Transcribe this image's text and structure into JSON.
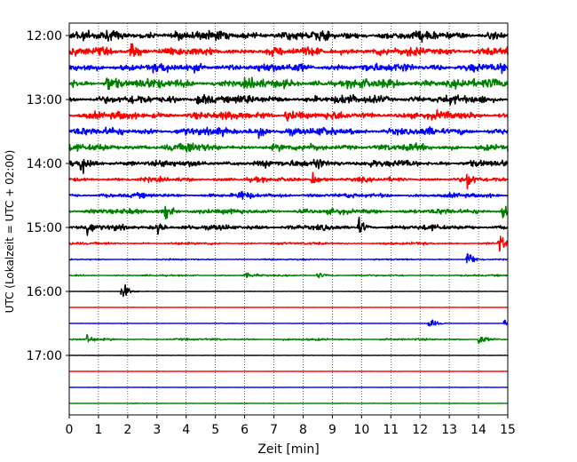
{
  "chart_data": {
    "type": "line",
    "title": "",
    "xlabel": "Zeit  [min]",
    "ylabel": "UTC (Lokalzeit = UTC + 02:00)",
    "xlim": [
      0,
      15
    ],
    "x_ticks": [
      "0",
      "1",
      "2",
      "3",
      "4",
      "5",
      "6",
      "7",
      "8",
      "9",
      "10",
      "11",
      "12",
      "13",
      "14",
      "15"
    ],
    "y_ticks": [
      "12:00",
      "13:00",
      "14:00",
      "15:00",
      "16:00",
      "17:00"
    ],
    "y_tick_traces": [
      0,
      4,
      8,
      12,
      16,
      20
    ],
    "grid": "vertical dotted",
    "trace_interval_minutes": 15,
    "trace_colors": [
      "#000000",
      "#ff0000",
      "#0000ff",
      "#008000"
    ],
    "traces": [
      {
        "start": "12:00",
        "amplitude": 0.55,
        "events": []
      },
      {
        "start": "12:15",
        "amplitude": 0.5,
        "events": [
          {
            "t": 2.1,
            "a": 1.0
          }
        ]
      },
      {
        "start": "12:30",
        "amplitude": 0.5,
        "events": []
      },
      {
        "start": "12:45",
        "amplitude": 0.55,
        "events": [
          {
            "t": 1.3,
            "a": 1.0
          }
        ]
      },
      {
        "start": "13:00",
        "amplitude": 0.5,
        "events": [
          {
            "t": 4.4,
            "a": 0.8
          }
        ]
      },
      {
        "start": "13:15",
        "amplitude": 0.45,
        "events": [
          {
            "t": 7.4,
            "a": 0.9
          }
        ]
      },
      {
        "start": "13:30",
        "amplitude": 0.45,
        "events": [
          {
            "t": 6.5,
            "a": 1.0
          }
        ]
      },
      {
        "start": "13:45",
        "amplitude": 0.4,
        "events": [
          {
            "t": 4.0,
            "a": 0.8
          }
        ]
      },
      {
        "start": "14:00",
        "amplitude": 0.4,
        "events": [
          {
            "t": 0.4,
            "a": 1.2
          },
          {
            "t": 8.4,
            "a": 1.3
          }
        ]
      },
      {
        "start": "14:15",
        "amplitude": 0.25,
        "events": [
          {
            "t": 8.3,
            "a": 0.9
          },
          {
            "t": 13.6,
            "a": 1.0
          }
        ]
      },
      {
        "start": "14:30",
        "amplitude": 0.25,
        "events": [
          {
            "t": 5.8,
            "a": 0.6
          }
        ]
      },
      {
        "start": "14:45",
        "amplitude": 0.3,
        "events": [
          {
            "t": 3.3,
            "a": 1.0
          },
          {
            "t": 14.8,
            "a": 0.8
          }
        ]
      },
      {
        "start": "15:00",
        "amplitude": 0.3,
        "events": [
          {
            "t": 0.6,
            "a": 0.8
          },
          {
            "t": 3.0,
            "a": 0.9
          },
          {
            "t": 9.9,
            "a": 0.8
          }
        ]
      },
      {
        "start": "15:15",
        "amplitude": 0.15,
        "events": [
          {
            "t": 14.7,
            "a": 1.2
          }
        ]
      },
      {
        "start": "15:30",
        "amplitude": 0.08,
        "events": [
          {
            "t": 13.6,
            "a": 1.3
          }
        ]
      },
      {
        "start": "15:45",
        "amplitude": 0.1,
        "events": [
          {
            "t": 6.0,
            "a": 0.4
          },
          {
            "t": 8.5,
            "a": 0.4
          }
        ]
      },
      {
        "start": "16:00",
        "amplitude": 0.02,
        "events": [
          {
            "t": 1.8,
            "a": 1.4
          }
        ]
      },
      {
        "start": "16:15",
        "amplitude": 0.02,
        "events": []
      },
      {
        "start": "16:30",
        "amplitude": 0.03,
        "events": [
          {
            "t": 12.3,
            "a": 0.9
          },
          {
            "t": 14.9,
            "a": 0.9
          }
        ]
      },
      {
        "start": "16:45",
        "amplitude": 0.12,
        "events": [
          {
            "t": 0.6,
            "a": 0.6
          },
          {
            "t": 14.0,
            "a": 0.8
          }
        ]
      },
      {
        "start": "17:00",
        "amplitude": 0.02,
        "events": []
      },
      {
        "start": "17:15",
        "amplitude": 0.02,
        "events": []
      },
      {
        "start": "17:30",
        "amplitude": 0.02,
        "events": []
      },
      {
        "start": "17:45",
        "amplitude": 0.03,
        "events": []
      }
    ]
  }
}
